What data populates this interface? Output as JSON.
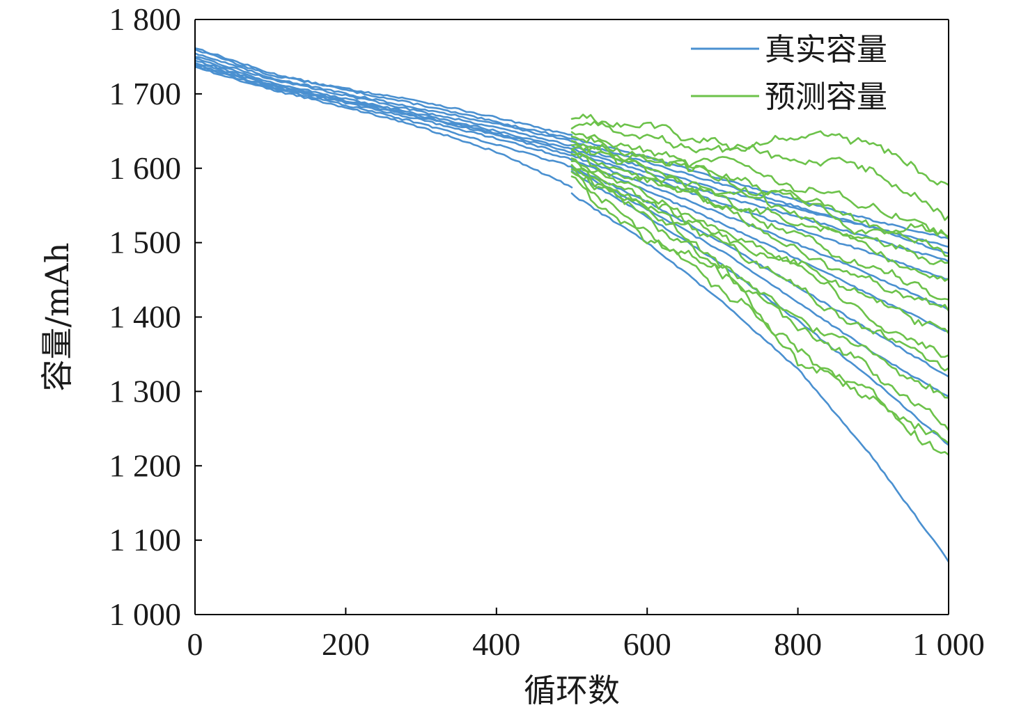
{
  "chart_data": {
    "type": "line",
    "xlabel": "循环数",
    "ylabel": "容量/mAh",
    "xlim": [
      0,
      1000
    ],
    "ylim": [
      1000,
      1800
    ],
    "xticks": [
      0,
      200,
      400,
      600,
      800,
      1000
    ],
    "xtick_labels": [
      "0",
      "200",
      "400",
      "600",
      "800",
      "1 000"
    ],
    "yticks": [
      1000,
      1100,
      1200,
      1300,
      1400,
      1500,
      1600,
      1700,
      1800
    ],
    "ytick_labels": [
      "1 000",
      "1 100",
      "1 200",
      "1 300",
      "1 400",
      "1 500",
      "1 600",
      "1 700",
      "1 800"
    ],
    "grid": false,
    "legend_position": "top-right",
    "legend": [
      {
        "label": "真实容量",
        "color": "#4a90d0"
      },
      {
        "label": "预测容量",
        "color": "#6cc24a"
      }
    ],
    "series": [
      {
        "group": "真实容量",
        "color": "#4a90d0",
        "x": [
          0,
          100,
          200,
          300,
          400,
          500
        ],
        "y": [
          1762,
          1728,
          1705,
          1685,
          1662,
          1640
        ]
      },
      {
        "group": "真实容量",
        "color": "#4a90d0",
        "x": [
          0,
          100,
          200,
          300,
          400,
          500
        ],
        "y": [
          1760,
          1725,
          1707,
          1690,
          1668,
          1644
        ]
      },
      {
        "group": "真实容量",
        "color": "#4a90d0",
        "x": [
          0,
          100,
          200,
          300,
          400,
          500
        ],
        "y": [
          1755,
          1722,
          1700,
          1680,
          1660,
          1636
        ]
      },
      {
        "group": "真实容量",
        "color": "#4a90d0",
        "x": [
          0,
          100,
          200,
          300,
          400,
          500
        ],
        "y": [
          1750,
          1720,
          1698,
          1676,
          1655,
          1630
        ]
      },
      {
        "group": "真实容量",
        "color": "#4a90d0",
        "x": [
          0,
          100,
          200,
          300,
          400,
          500
        ],
        "y": [
          1748,
          1716,
          1693,
          1672,
          1650,
          1626
        ]
      },
      {
        "group": "真实容量",
        "color": "#4a90d0",
        "x": [
          0,
          100,
          200,
          300,
          400,
          500
        ],
        "y": [
          1745,
          1713,
          1691,
          1670,
          1647,
          1622
        ]
      },
      {
        "group": "真实容量",
        "color": "#4a90d0",
        "x": [
          0,
          100,
          200,
          300,
          400,
          500
        ],
        "y": [
          1742,
          1712,
          1690,
          1668,
          1645,
          1617
        ]
      },
      {
        "group": "真实容量",
        "color": "#4a90d0",
        "x": [
          0,
          100,
          200,
          300,
          400,
          500
        ],
        "y": [
          1740,
          1710,
          1688,
          1665,
          1640,
          1612
        ]
      },
      {
        "group": "真实容量",
        "color": "#4a90d0",
        "x": [
          0,
          100,
          200,
          300,
          400,
          500
        ],
        "y": [
          1738,
          1708,
          1685,
          1660,
          1632,
          1602
        ]
      },
      {
        "group": "真实容量",
        "color": "#4a90d0",
        "x": [
          0,
          100,
          200,
          300,
          400,
          500
        ],
        "y": [
          1736,
          1706,
          1682,
          1655,
          1622,
          1575
        ]
      },
      {
        "group": "真实容量",
        "color": "#4a90d0",
        "x": [
          500,
          600,
          700,
          800,
          900,
          1000
        ],
        "y": [
          1640,
          1615,
          1585,
          1557,
          1530,
          1505
        ]
      },
      {
        "group": "真实容量",
        "color": "#4a90d0",
        "x": [
          500,
          600,
          700,
          800,
          900,
          1000
        ],
        "y": [
          1636,
          1608,
          1578,
          1548,
          1520,
          1495
        ]
      },
      {
        "group": "真实容量",
        "color": "#4a90d0",
        "x": [
          500,
          600,
          700,
          800,
          900,
          1000
        ],
        "y": [
          1630,
          1600,
          1570,
          1545,
          1520,
          1485
        ]
      },
      {
        "group": "真实容量",
        "color": "#4a90d0",
        "x": [
          500,
          600,
          700,
          800,
          900,
          1000
        ],
        "y": [
          1626,
          1594,
          1562,
          1535,
          1505,
          1475
        ]
      },
      {
        "group": "真实容量",
        "color": "#4a90d0",
        "x": [
          500,
          600,
          700,
          800,
          900,
          1000
        ],
        "y": [
          1622,
          1588,
          1552,
          1518,
          1485,
          1450
        ]
      },
      {
        "group": "真实容量",
        "color": "#4a90d0",
        "x": [
          500,
          600,
          700,
          800,
          900,
          1000
        ],
        "y": [
          1617,
          1578,
          1538,
          1498,
          1455,
          1410
        ]
      },
      {
        "group": "真实容量",
        "color": "#4a90d0",
        "x": [
          500,
          600,
          700,
          800,
          900,
          1000
        ],
        "y": [
          1612,
          1570,
          1525,
          1478,
          1428,
          1380
        ]
      },
      {
        "group": "真实容量",
        "color": "#4a90d0",
        "x": [
          500,
          600,
          700,
          800,
          900,
          1000
        ],
        "y": [
          1602,
          1555,
          1500,
          1440,
          1380,
          1320
        ]
      },
      {
        "group": "真实容量",
        "color": "#4a90d0",
        "x": [
          500,
          600,
          700,
          800,
          900,
          1000
        ],
        "y": [
          1600,
          1545,
          1488,
          1420,
          1352,
          1292
        ]
      },
      {
        "group": "真实容量",
        "color": "#4a90d0",
        "x": [
          500,
          600,
          700,
          800,
          900,
          1000
        ],
        "y": [
          1595,
          1535,
          1470,
          1395,
          1315,
          1228
        ]
      },
      {
        "group": "真实容量",
        "color": "#4a90d0",
        "x": [
          500,
          600,
          700,
          800,
          900,
          1000
        ],
        "y": [
          1565,
          1500,
          1420,
          1330,
          1210,
          1072
        ]
      },
      {
        "group": "预测容量",
        "color": "#6cc24a",
        "x": [
          500,
          600,
          700,
          800,
          900,
          1000
        ],
        "y": [
          1672,
          1652,
          1630,
          1635,
          1640,
          1580
        ]
      },
      {
        "group": "预测容量",
        "color": "#6cc24a",
        "x": [
          500,
          600,
          700,
          800,
          900,
          1000
        ],
        "y": [
          1660,
          1640,
          1620,
          1610,
          1600,
          1540
        ]
      },
      {
        "group": "预测容量",
        "color": "#6cc24a",
        "x": [
          500,
          600,
          700,
          800,
          900,
          1000
        ],
        "y": [
          1650,
          1620,
          1595,
          1570,
          1550,
          1520
        ]
      },
      {
        "group": "预测容量",
        "color": "#6cc24a",
        "x": [
          500,
          600,
          700,
          800,
          900,
          1000
        ],
        "y": [
          1645,
          1615,
          1590,
          1560,
          1530,
          1510
        ]
      },
      {
        "group": "预测容量",
        "color": "#6cc24a",
        "x": [
          500,
          600,
          700,
          800,
          900,
          1000
        ],
        "y": [
          1640,
          1610,
          1580,
          1545,
          1520,
          1490
        ]
      },
      {
        "group": "预测容量",
        "color": "#6cc24a",
        "x": [
          500,
          600,
          700,
          800,
          900,
          1000
        ],
        "y": [
          1635,
          1600,
          1570,
          1535,
          1505,
          1470
        ]
      },
      {
        "group": "预测容量",
        "color": "#6cc24a",
        "x": [
          500,
          600,
          700,
          800,
          900,
          1000
        ],
        "y": [
          1630,
          1595,
          1560,
          1520,
          1480,
          1450
        ]
      },
      {
        "group": "预测容量",
        "color": "#6cc24a",
        "x": [
          500,
          600,
          700,
          800,
          900,
          1000
        ],
        "y": [
          1625,
          1590,
          1550,
          1510,
          1470,
          1430
        ]
      },
      {
        "group": "预测容量",
        "color": "#6cc24a",
        "x": [
          500,
          600,
          700,
          800,
          900,
          1000
        ],
        "y": [
          1620,
          1580,
          1540,
          1495,
          1450,
          1410
        ]
      },
      {
        "group": "预测容量",
        "color": "#6cc24a",
        "x": [
          500,
          600,
          700,
          800,
          900,
          1000
        ],
        "y": [
          1615,
          1570,
          1525,
          1480,
          1430,
          1380
        ]
      },
      {
        "group": "预测容量",
        "color": "#6cc24a",
        "x": [
          500,
          600,
          700,
          800,
          900,
          1000
        ],
        "y": [
          1612,
          1560,
          1510,
          1460,
          1400,
          1350
        ]
      },
      {
        "group": "预测容量",
        "color": "#6cc24a",
        "x": [
          500,
          600,
          700,
          800,
          900,
          1000
        ],
        "y": [
          1608,
          1550,
          1500,
          1440,
          1380,
          1320
        ]
      },
      {
        "group": "预测容量",
        "color": "#6cc24a",
        "x": [
          500,
          600,
          700,
          800,
          900,
          1000
        ],
        "y": [
          1602,
          1540,
          1470,
          1410,
          1350,
          1290
        ]
      },
      {
        "group": "预测容量",
        "color": "#6cc24a",
        "x": [
          500,
          600,
          700,
          800,
          900,
          1000
        ],
        "y": [
          1598,
          1530,
          1455,
          1380,
          1320,
          1250
        ]
      },
      {
        "group": "预测容量",
        "color": "#6cc24a",
        "x": [
          500,
          600,
          700,
          800,
          900,
          1000
        ],
        "y": [
          1595,
          1510,
          1440,
          1360,
          1285,
          1230
        ]
      },
      {
        "group": "预测容量",
        "color": "#6cc24a",
        "x": [
          500,
          600,
          700,
          800,
          900,
          1000
        ],
        "y": [
          1590,
          1490,
          1460,
          1340,
          1300,
          1210
        ]
      }
    ]
  }
}
